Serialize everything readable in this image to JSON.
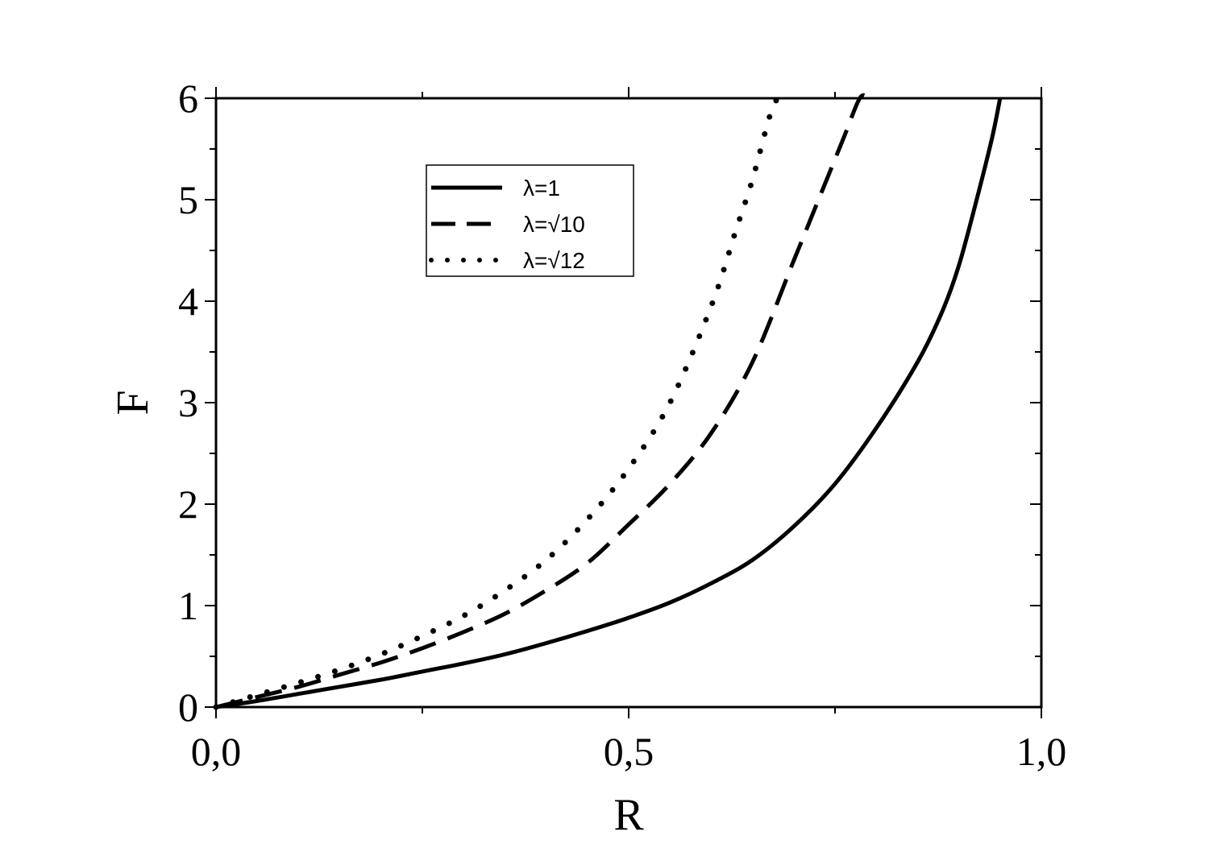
{
  "chart_data": {
    "type": "line",
    "title": "",
    "xlabel": "R",
    "ylabel": "F",
    "xlim": [
      0,
      1
    ],
    "ylim": [
      0,
      6
    ],
    "x_ticks": [
      0,
      0.5,
      1
    ],
    "x_tick_labels": [
      "0,0",
      "0,5",
      "1,0"
    ],
    "y_ticks": [
      0,
      1,
      2,
      3,
      4,
      5,
      6
    ],
    "y_tick_labels": [
      "0",
      "1",
      "2",
      "3",
      "4",
      "5",
      "6"
    ],
    "grid": false,
    "legend_position": "top-center",
    "series": [
      {
        "name": "λ=1",
        "style": "solid",
        "x": [
          0,
          0.05,
          0.1,
          0.15,
          0.2,
          0.25,
          0.3,
          0.35,
          0.4,
          0.45,
          0.5,
          0.55,
          0.6,
          0.65,
          0.7,
          0.75,
          0.8,
          0.85,
          0.88,
          0.9,
          0.92,
          0.94,
          0.95
        ],
        "y": [
          0,
          0.06,
          0.13,
          0.2,
          0.27,
          0.35,
          0.43,
          0.52,
          0.63,
          0.75,
          0.88,
          1.03,
          1.22,
          1.45,
          1.78,
          2.2,
          2.75,
          3.4,
          3.9,
          4.35,
          4.95,
          5.6,
          6.0
        ]
      },
      {
        "name": "λ=√10",
        "style": "dashed",
        "x": [
          0,
          0.05,
          0.1,
          0.15,
          0.2,
          0.25,
          0.3,
          0.35,
          0.4,
          0.45,
          0.5,
          0.55,
          0.6,
          0.65,
          0.7,
          0.73,
          0.76,
          0.78,
          0.79
        ],
        "y": [
          0,
          0.1,
          0.2,
          0.32,
          0.44,
          0.58,
          0.74,
          0.92,
          1.15,
          1.42,
          1.8,
          2.2,
          2.7,
          3.4,
          4.4,
          5.0,
          5.6,
          6.0,
          6.0
        ]
      },
      {
        "name": "λ=√12",
        "style": "dotted",
        "x": [
          0,
          0.05,
          0.1,
          0.15,
          0.2,
          0.25,
          0.3,
          0.35,
          0.4,
          0.45,
          0.5,
          0.55,
          0.6,
          0.63,
          0.65,
          0.67,
          0.68
        ],
        "y": [
          0,
          0.12,
          0.24,
          0.37,
          0.52,
          0.7,
          0.9,
          1.15,
          1.45,
          1.85,
          2.35,
          3.0,
          3.95,
          4.7,
          5.2,
          5.8,
          6.0
        ]
      }
    ]
  }
}
